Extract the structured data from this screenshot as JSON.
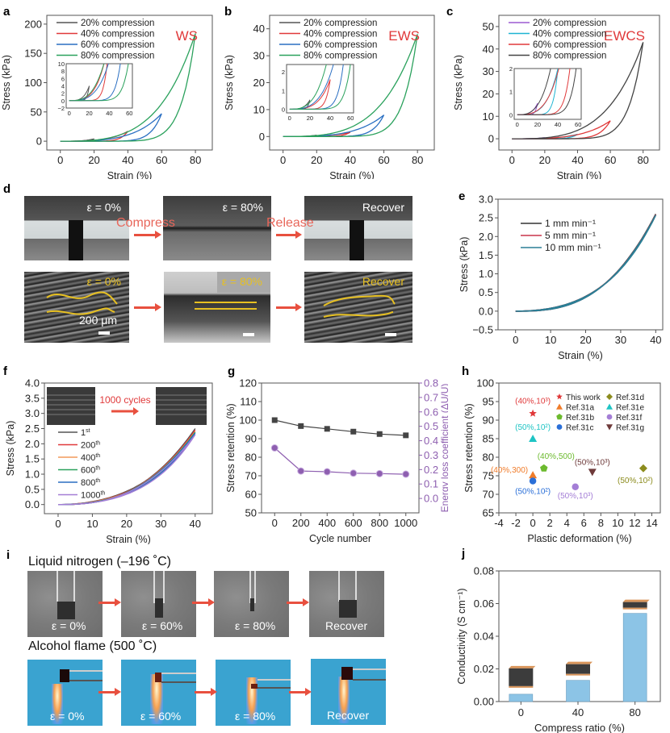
{
  "figure": {
    "panel_labels": [
      "a",
      "b",
      "c",
      "d",
      "e",
      "f",
      "g",
      "h",
      "i",
      "j"
    ],
    "accent_red": "#e8503f"
  },
  "chart_data": [
    {
      "id": "a",
      "type": "line",
      "title": "",
      "annotation": "WS",
      "xlabel": "Strain (%)",
      "ylabel": "Stress (kPa)",
      "xlim": [
        -8,
        90
      ],
      "ylim": [
        -15,
        215
      ],
      "xticks": [
        0,
        20,
        40,
        60,
        80
      ],
      "yticks": [
        0,
        50,
        100,
        150,
        200
      ],
      "legend": "top-left",
      "series": [
        {
          "name": "20% compression",
          "color": "#555555",
          "max_strain": 20,
          "peak_stress": 4
        },
        {
          "name": "40% compression",
          "color": "#e0393a",
          "max_strain": 40,
          "peak_stress": 17
        },
        {
          "name": "60% compression",
          "color": "#2a6fc2",
          "max_strain": 60,
          "peak_stress": 47
        },
        {
          "name": "80% compression",
          "color": "#2aa15c",
          "max_strain": 80,
          "peak_stress": 184
        }
      ],
      "inset": {
        "xlim": [
          -3,
          63
        ],
        "ylim": [
          -2,
          10
        ],
        "xticks": [
          0,
          20,
          40,
          60
        ],
        "yticks": [
          -2,
          0,
          2,
          4,
          6,
          8,
          10
        ]
      }
    },
    {
      "id": "b",
      "type": "line",
      "annotation": "EWS",
      "xlabel": "Strain (%)",
      "ylabel": "Stress (kPa)",
      "xlim": [
        -8,
        90
      ],
      "ylim": [
        -5,
        45
      ],
      "xticks": [
        0,
        20,
        40,
        60,
        80
      ],
      "yticks": [
        0,
        10,
        20,
        30,
        40
      ],
      "legend": "top-left",
      "series": [
        {
          "name": "20% compression",
          "color": "#555555",
          "max_strain": 20,
          "peak_stress": 0.5
        },
        {
          "name": "40% compression",
          "color": "#e0393a",
          "max_strain": 40,
          "peak_stress": 1.6
        },
        {
          "name": "60% compression",
          "color": "#2a6fc2",
          "max_strain": 60,
          "peak_stress": 8
        },
        {
          "name": "80% compression",
          "color": "#2aa15c",
          "max_strain": 80,
          "peak_stress": 38
        }
      ],
      "inset": {
        "xlim": [
          -3,
          63
        ],
        "ylim": [
          -0.2,
          2.4
        ],
        "xticks": [
          0,
          20,
          40,
          60
        ],
        "yticks": [
          0,
          1,
          2
        ]
      }
    },
    {
      "id": "c",
      "type": "line",
      "annotation": "EWCS",
      "xlabel": "Strain (%)",
      "ylabel": "Stress (kPa)",
      "xlim": [
        -8,
        90
      ],
      "ylim": [
        -5,
        55
      ],
      "xticks": [
        0,
        20,
        40,
        60,
        80
      ],
      "yticks": [
        0,
        10,
        20,
        30,
        40,
        50
      ],
      "legend": "top-left",
      "series": [
        {
          "name": "20% compression",
          "color": "#9b59d0",
          "max_strain": 20,
          "peak_stress": 0.5
        },
        {
          "name": "40% compression",
          "color": "#1eb4d2",
          "max_strain": 40,
          "peak_stress": 2
        },
        {
          "name": "60% compression",
          "color": "#e0393a",
          "max_strain": 60,
          "peak_stress": 8
        },
        {
          "name": "80% compression",
          "color": "#444444",
          "max_strain": 80,
          "peak_stress": 43
        }
      ],
      "inset": {
        "xlim": [
          -3,
          63
        ],
        "ylim": [
          -0.2,
          2
        ],
        "xticks": [
          0,
          20,
          40,
          60
        ],
        "yticks": [
          0,
          1,
          2
        ]
      }
    },
    {
      "id": "e",
      "type": "line",
      "xlabel": "Strain (%)",
      "ylabel": "Stress (kPa)",
      "xlim": [
        -5,
        42
      ],
      "ylim": [
        -0.5,
        3.0
      ],
      "xticks": [
        0,
        10,
        20,
        30,
        40
      ],
      "yticks": [
        -0.5,
        0.0,
        0.5,
        1.0,
        1.5,
        2.0,
        2.5,
        3.0
      ],
      "legend": "top-left",
      "series": [
        {
          "name": "1 mm min⁻¹",
          "color": "#333333",
          "max_strain": 40,
          "peak_stress": 2.6
        },
        {
          "name": "5 mm min⁻¹",
          "color": "#c8354a",
          "max_strain": 40,
          "peak_stress": 2.58
        },
        {
          "name": "10 mm min⁻¹",
          "color": "#2a7f96",
          "max_strain": 40,
          "peak_stress": 2.57
        }
      ]
    },
    {
      "id": "f",
      "type": "line",
      "xlabel": "Strain (%)",
      "ylabel": "Stress (kPa)",
      "xlim": [
        -4,
        45
      ],
      "ylim": [
        -0.3,
        4.0
      ],
      "xticks": [
        0,
        10,
        20,
        30,
        40
      ],
      "yticks": [
        0.0,
        0.5,
        1.0,
        1.5,
        2.0,
        2.5,
        3.0,
        3.5,
        4.0
      ],
      "legend": "middle-left",
      "annotation": "1000 cycles",
      "series": [
        {
          "name": "1st",
          "sup": "st",
          "base": "1",
          "color": "#555555",
          "max_strain": 40,
          "peak_stress": 2.5
        },
        {
          "name": "200th",
          "sup": "th",
          "base": "200",
          "color": "#e0393a",
          "max_strain": 40,
          "peak_stress": 2.45
        },
        {
          "name": "400th",
          "sup": "th",
          "base": "400",
          "color": "#f29a5a",
          "max_strain": 40,
          "peak_stress": 2.4
        },
        {
          "name": "600th",
          "sup": "th",
          "base": "600",
          "color": "#2aa15c",
          "max_strain": 40,
          "peak_stress": 2.38
        },
        {
          "name": "800th",
          "sup": "th",
          "base": "800",
          "color": "#2a6fc2",
          "max_strain": 40,
          "peak_stress": 2.35
        },
        {
          "name": "1000th",
          "sup": "th",
          "base": "1000",
          "color": "#a47ed6",
          "max_strain": 40,
          "peak_stress": 2.3
        }
      ]
    },
    {
      "id": "g",
      "type": "line",
      "xlabel": "Cycle number",
      "ylabel": "Stress retention (%)",
      "ylabel_right": "Energy loss coefficient (ΔU/U)",
      "xlim": [
        -100,
        1100
      ],
      "ylim": [
        50,
        120
      ],
      "ylim_right": [
        -0.1,
        0.8
      ],
      "xticks": [
        0,
        200,
        400,
        600,
        800,
        1000
      ],
      "yticks": [
        50,
        60,
        70,
        80,
        90,
        100,
        110,
        120
      ],
      "yticks_right": [
        0.0,
        0.1,
        0.2,
        0.3,
        0.4,
        0.5,
        0.6,
        0.7,
        0.8
      ],
      "x": [
        0,
        200,
        400,
        600,
        800,
        1000
      ],
      "series": [
        {
          "name": "Stress retention",
          "axis": "left",
          "color": "#444444",
          "marker": "square",
          "values": [
            100,
            96.8,
            95.3,
            93.8,
            92.5,
            91.8
          ]
        },
        {
          "name": "Energy loss coefficient",
          "axis": "right",
          "color": "#8e5fb0",
          "marker": "circle",
          "values": [
            0.35,
            0.19,
            0.185,
            0.175,
            0.172,
            0.168
          ]
        }
      ]
    },
    {
      "id": "h",
      "type": "scatter",
      "xlabel": "Plastic deformation (%)",
      "ylabel": "Stress retention (%)",
      "xlim": [
        -4,
        15
      ],
      "ylim": [
        65,
        100
      ],
      "xticks": [
        -4,
        -2,
        0,
        2,
        4,
        6,
        8,
        10,
        12,
        14
      ],
      "yticks": [
        65,
        70,
        75,
        80,
        85,
        90,
        95,
        100
      ],
      "legend": "top-right",
      "points": [
        {
          "name": "This work",
          "x": 0,
          "y": 91.8,
          "marker": "star",
          "color": "#e0393a",
          "label": "(40%,10³)"
        },
        {
          "name": "Ref.31a",
          "x": 0,
          "y": 75.2,
          "marker": "triangle-up",
          "color": "#f07c2a",
          "label": "(40%,300)"
        },
        {
          "name": "Ref.31b",
          "x": 1.3,
          "y": 77,
          "marker": "pentagon",
          "color": "#6cba2e",
          "label": "(40%,500)"
        },
        {
          "name": "Ref.31c",
          "x": 0,
          "y": 73.6,
          "marker": "circle",
          "color": "#2a6fd8",
          "label": "(50%,10²)"
        },
        {
          "name": "Ref.31d",
          "x": 13,
          "y": 77,
          "marker": "diamond",
          "color": "#8c8c1e",
          "label": "(50%,10²)"
        },
        {
          "name": "Ref.31e",
          "x": 0,
          "y": 85,
          "marker": "triangle-up",
          "color": "#1ec4c4",
          "label": "(50%,10²)"
        },
        {
          "name": "Ref.31f",
          "x": 5,
          "y": 72,
          "marker": "circle",
          "color": "#a47ed6",
          "label": "(50%,10³)"
        },
        {
          "name": "Ref.31g",
          "x": 7,
          "y": 76,
          "marker": "triangle-down",
          "color": "#6e3a3a",
          "label": "(50%,10³)"
        }
      ]
    },
    {
      "id": "j",
      "type": "bar",
      "xlabel": "Compress ratio (%)",
      "ylabel": "Conductivity (S cm⁻¹)",
      "categories": [
        "0",
        "40",
        "80"
      ],
      "values": [
        0.0045,
        0.013,
        0.054
      ],
      "ylim": [
        0,
        0.08
      ],
      "yticks": [
        "0.00",
        "0.02",
        "0.04",
        "0.06",
        "0.08"
      ],
      "color": "#8cc4e6"
    }
  ],
  "panel_d": {
    "top_labels": [
      "ε = 0%",
      "ε = 80%",
      "Recover"
    ],
    "bottom_labels": [
      "ε = 0%",
      "ε = 80%",
      "Recover"
    ],
    "arrow_labels": [
      "Compress",
      "Release"
    ],
    "scale_bar": "200 μm"
  },
  "panel_i": {
    "row1_title": "Liquid nitrogen (–196 ˚C)",
    "row2_title": "Alcohol flame (500 ˚C)",
    "row1_labels": [
      "ε = 0%",
      "ε = 60%",
      "ε = 80%",
      "Recover"
    ],
    "row2_labels": [
      "ε = 0%",
      "ε = 60%",
      "ε = 80%",
      "Recover"
    ]
  }
}
